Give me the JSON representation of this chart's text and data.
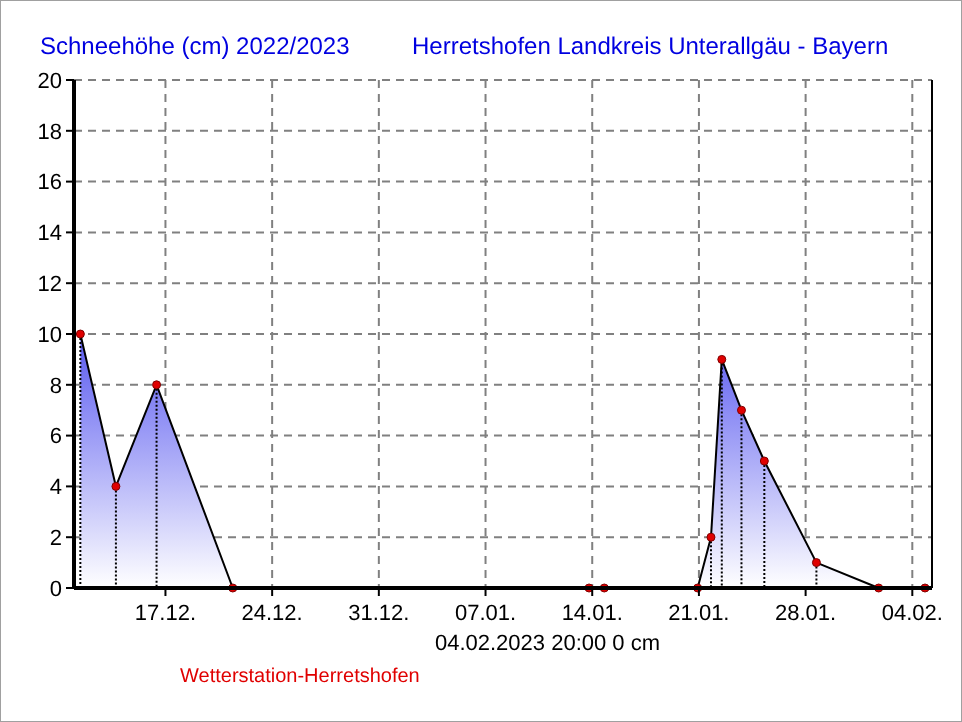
{
  "chart_data": {
    "type": "area",
    "title": "Schneehöhe (cm)  2022/2023",
    "subtitle": "Herretshofen Landkreis Unterallgäu - Bayern",
    "annotations": [
      "04.02.2023  20:00    0 cm",
      "Wetterstation-Herretshofen"
    ],
    "x": [
      "2022-12-11T10:00",
      "2022-12-13T18:00",
      "2022-12-16T10:00",
      "2022-12-21T10:00",
      "2023-01-13T19:00",
      "2023-01-14T19:00",
      "2023-01-20T22:00",
      "2023-01-21T19:00",
      "2023-01-22T12:00",
      "2023-01-23T19:00",
      "2023-01-25T07:00",
      "2023-01-28T17:00",
      "2023-02-01T19:00",
      "2023-02-04T20:00"
    ],
    "series": [
      {
        "color": "#5a5af0",
        "values": [
          10,
          4,
          8,
          0,
          0,
          0,
          0,
          2,
          9,
          7,
          5,
          1,
          0,
          0
        ]
      },
      {
        "type": "lollipop",
        "color": "#e00000",
        "line_style": "dotted",
        "marker": "circle",
        "values": [
          10,
          4,
          8,
          0,
          0,
          0,
          0,
          2,
          9,
          7,
          5,
          1,
          0,
          0
        ]
      }
    ],
    "grid": true,
    "xlim": [
      "2022-12-11",
      "2023-02-05T07:00"
    ],
    "xticks": [
      {
        "value": "2022-12-17",
        "label": "17.12."
      },
      {
        "value": "2022-12-24",
        "label": "24.12."
      },
      {
        "value": "2022-12-31",
        "label": "31.12."
      },
      {
        "value": "2023-01-07",
        "label": "07.01."
      },
      {
        "value": "2023-01-14",
        "label": "14.01."
      },
      {
        "value": "2023-01-21",
        "label": "21.01."
      },
      {
        "value": "2023-01-28",
        "label": "28.01."
      },
      {
        "value": "2023-02-04",
        "label": "04.02."
      }
    ],
    "ylim": [
      0,
      20
    ],
    "yticks": [
      0,
      2,
      4,
      6,
      8,
      10,
      12,
      14,
      16,
      18,
      20
    ]
  }
}
